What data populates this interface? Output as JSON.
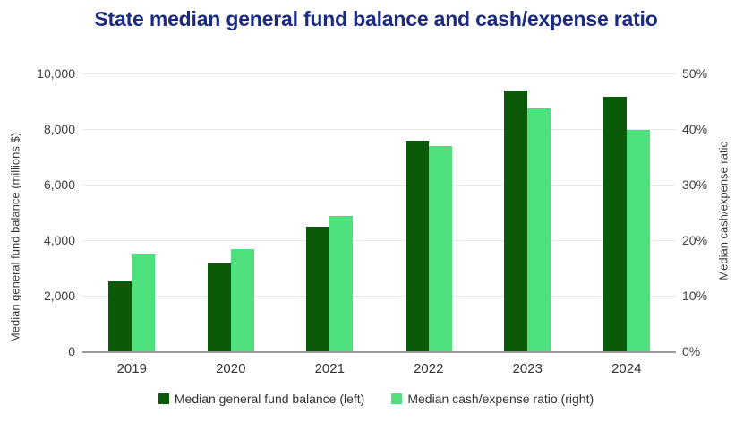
{
  "chart_data": {
    "type": "bar",
    "title": "State median general fund balance and cash/expense ratio",
    "categories": [
      "2019",
      "2020",
      "2021",
      "2022",
      "2023",
      "2024"
    ],
    "series": [
      {
        "name": "Median general fund balance (left)",
        "axis": "left",
        "color": "#0a5a0a",
        "values": [
          2500,
          3170,
          4480,
          7580,
          9400,
          9150
        ]
      },
      {
        "name": "Median cash/expense ratio (right)",
        "axis": "right",
        "color": "#4ee07d",
        "values": [
          17.6,
          18.4,
          24.4,
          37.0,
          43.7,
          39.8
        ]
      }
    ],
    "left_axis": {
      "label": "Median general fund balance (millions $)",
      "min": 0,
      "max": 10000,
      "ticks": [
        "10,000",
        "8,000",
        "6,000",
        "4,000",
        "2,000",
        "0"
      ]
    },
    "right_axis": {
      "label": "Median cash/expense ratio",
      "min": 0,
      "max": 50,
      "ticks": [
        "50%",
        "40%",
        "30%",
        "20%",
        "10%",
        "0%"
      ]
    },
    "legend_position": "bottom",
    "grid": true
  },
  "colors": {
    "title": "#1b2b7e",
    "balance_bar": "#0a5a0a",
    "ratio_bar": "#4ee07d",
    "gridline": "#e7e7e7",
    "axis_line": "#999999",
    "background": "#ffffff"
  }
}
